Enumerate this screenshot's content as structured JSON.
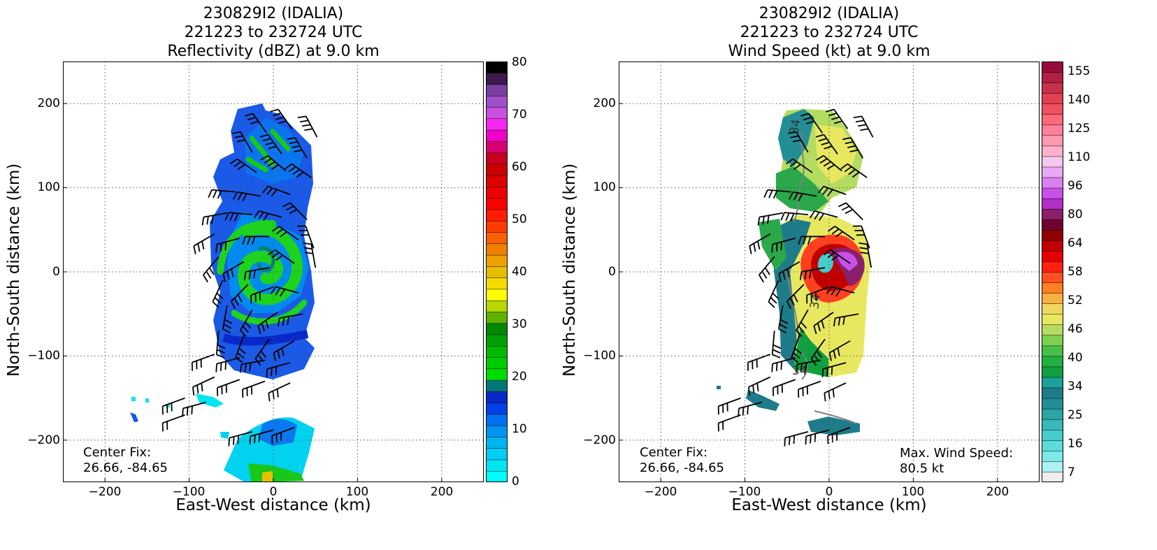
{
  "chart_data": [
    {
      "type": "heatmap",
      "title_lines": [
        "230829I2 (IDALIA)",
        "221223 to 232724 UTC",
        "Reflectivity (dBZ) at 9.0 km"
      ],
      "xlabel": "East-West distance (km)",
      "ylabel": "North-South distance (km)",
      "xlim": [
        -250,
        250
      ],
      "ylim": [
        -250,
        250
      ],
      "xticks": [
        "−200",
        "−100",
        "0",
        "100",
        "200"
      ],
      "yticks": [
        "200",
        "100",
        "0",
        "−100",
        "−200"
      ],
      "grid": "dotted",
      "colorbar": {
        "range": [
          0,
          80
        ],
        "ticks": [
          "80",
          "70",
          "60",
          "50",
          "40",
          "30",
          "20",
          "10",
          "0"
        ],
        "colors": [
          "#00ffff",
          "#00e6f0",
          "#00cff5",
          "#00b4f0",
          "#0096ee",
          "#0070f0",
          "#0040e8",
          "#0a28c8",
          "#00787a",
          "#00dd00",
          "#00cc00",
          "#00bb00",
          "#00a000",
          "#008800",
          "#60b000",
          "#b4d800",
          "#ffff00",
          "#f4dc00",
          "#e8be00",
          "#eea000",
          "#f08000",
          "#f86000",
          "#ff3c00",
          "#ff1a00",
          "#ff0000",
          "#ee0000",
          "#dd0000",
          "#cc0000",
          "#c80020",
          "#d80070",
          "#f000c8",
          "#f428f0",
          "#c850dc",
          "#a050c8",
          "#7840a0",
          "#3c1a50",
          "#000000"
        ]
      },
      "annotations": [
        "Center Fix:",
        "26.66, -84.65"
      ],
      "center_fix_label": "Center Fix:",
      "center_fix_value": "26.66, -84.65"
    },
    {
      "type": "heatmap",
      "title_lines": [
        "230829I2 (IDALIA)",
        "221223 to 232724 UTC",
        "Wind Speed (kt) at 9.0 km"
      ],
      "xlabel": "East-West distance (km)",
      "ylabel": "North-South distance (km)",
      "xlim": [
        -250,
        250
      ],
      "ylim": [
        -250,
        250
      ],
      "xticks": [
        "−200",
        "−100",
        "0",
        "100",
        "200"
      ],
      "yticks": [
        "200",
        "100",
        "0",
        "−100",
        "−200"
      ],
      "grid": "dotted",
      "contour_label": "34",
      "colorbar": {
        "ticks": [
          "155",
          "140",
          "125",
          "110",
          "96",
          "80",
          "64",
          "58",
          "52",
          "46",
          "40",
          "34",
          "25",
          "16",
          "7"
        ],
        "colors": [
          "#eeeeee",
          "#aff2f2",
          "#7ee8e8",
          "#5cdcdc",
          "#46cccc",
          "#38b8b8",
          "#2ca4a4",
          "#248e96",
          "#1e7c8a",
          "#1aa098",
          "#10a040",
          "#22b040",
          "#48c048",
          "#80d050",
          "#b4dc60",
          "#e8e860",
          "#f0d860",
          "#f8b040",
          "#ff8020",
          "#ff5020",
          "#ff2010",
          "#e80000",
          "#c00000",
          "#900000",
          "#700030",
          "#8a1f6a",
          "#b030c8",
          "#c850e8",
          "#d880f0",
          "#e8a8f4",
          "#f4c8ec",
          "#ffb0cc",
          "#ff9ab0",
          "#ff8098",
          "#ff6a78",
          "#f05060",
          "#e04050",
          "#c83048",
          "#b02040",
          "#980c3c"
        ]
      },
      "annotations": [
        "Center Fix:",
        "26.66, -84.65",
        "Max. Wind Speed:",
        "80.5 kt"
      ],
      "center_fix_label": "Center Fix:",
      "center_fix_value": "26.66, -84.65",
      "max_wind_label": "Max. Wind Speed:",
      "max_wind_value": "80.5 kt"
    }
  ]
}
